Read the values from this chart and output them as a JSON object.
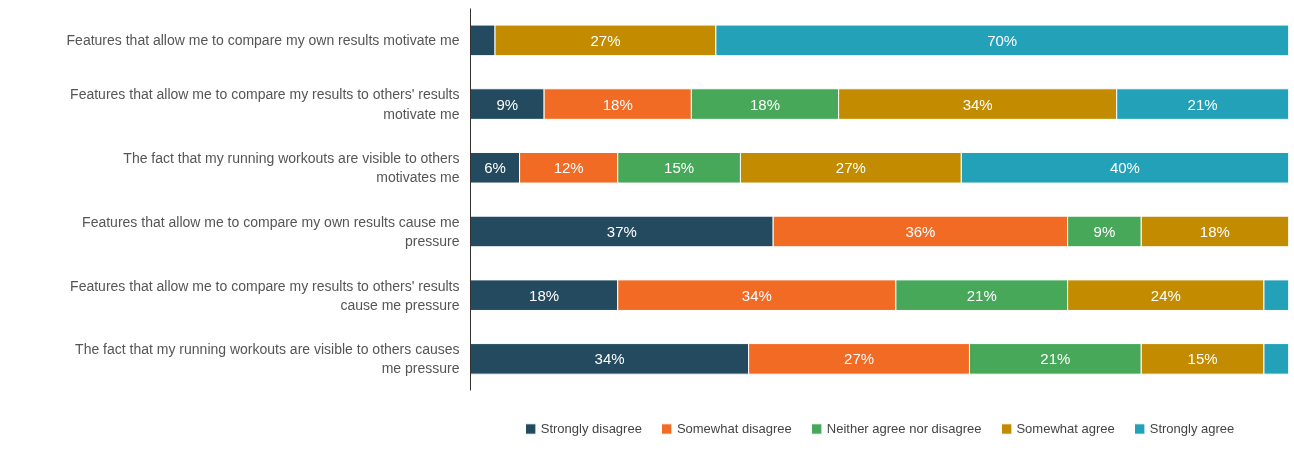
{
  "chart_data": {
    "type": "bar",
    "orientation": "horizontal",
    "stacked": true,
    "categories": [
      "Features that allow me to compare my own results motivate me",
      "Features that allow me to compare my results to others' results motivate me",
      "The fact that my running workouts are visible to others motivates me",
      "Features that allow me to compare my own results cause me pressure",
      "Features that allow me to compare my results to others' results cause me pressure",
      "The fact that my running workouts are visible to others causes me pressure"
    ],
    "series": [
      {
        "name": "Strongly disagree",
        "color": "#234a5e",
        "values": [
          3,
          9,
          6,
          37,
          18,
          34
        ],
        "value_labels": [
          null,
          "9%",
          "6%",
          "37%",
          "18%",
          "34%"
        ]
      },
      {
        "name": "Somewhat disagree",
        "color": "#f26b24",
        "values": [
          0,
          18,
          12,
          36,
          34,
          27
        ],
        "value_labels": [
          null,
          "18%",
          "12%",
          "36%",
          "34%",
          "27%"
        ]
      },
      {
        "name": "Neither agree nor disagree",
        "color": "#47a85a",
        "values": [
          0,
          18,
          15,
          9,
          21,
          21
        ],
        "value_labels": [
          null,
          "18%",
          "15%",
          "9%",
          "21%",
          "21%"
        ]
      },
      {
        "name": "Somewhat agree",
        "color": "#c38c00",
        "values": [
          27,
          34,
          27,
          18,
          24,
          15
        ],
        "value_labels": [
          "27%",
          "34%",
          "27%",
          "18%",
          "24%",
          "15%"
        ]
      },
      {
        "name": "Strongly agree",
        "color": "#22a1b8",
        "values": [
          70,
          21,
          40,
          0,
          3,
          3
        ],
        "value_labels": [
          "70%",
          "21%",
          "40%",
          null,
          null,
          null
        ]
      }
    ],
    "xlim": [
      0,
      100
    ],
    "tick_labels": "y",
    "grid": false,
    "legend": "bottom"
  }
}
